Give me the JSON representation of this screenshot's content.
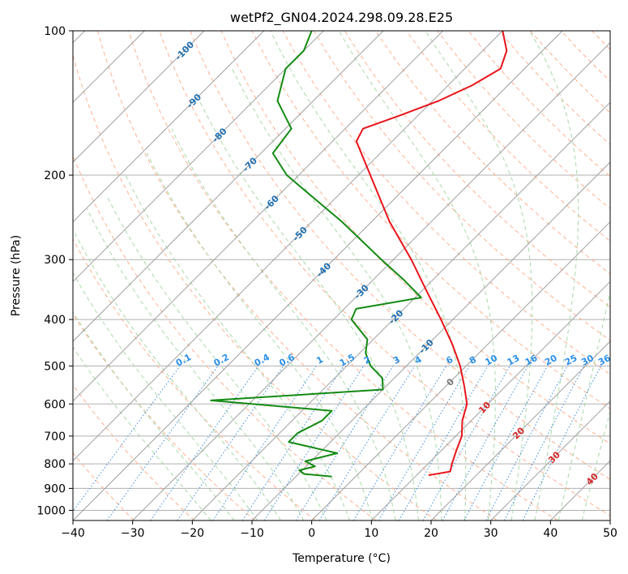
{
  "chart_data": {
    "type": "line",
    "diagram": "skew-t log-p",
    "title": "wetPf2_GN04.2024.298.09.28.E25",
    "xlabel": "Temperature (°C)",
    "ylabel": "Pressure (hPa)",
    "xlim": [
      -40,
      50
    ],
    "ylim": [
      1050,
      100
    ],
    "y_scale": "log",
    "grid": true,
    "x_ticks": [
      -40,
      -30,
      -20,
      -10,
      0,
      10,
      20,
      30,
      40,
      50
    ],
    "y_ticks": [
      100,
      200,
      300,
      400,
      500,
      600,
      700,
      800,
      900,
      1000
    ],
    "isotherm_labels": [
      "-100",
      "-90",
      "-80",
      "-70",
      "-60",
      "-50",
      "-40",
      "-30",
      "-20",
      "-10",
      "0",
      "10",
      "20",
      "30",
      "40"
    ],
    "mixing_ratio_labels": [
      "0.1",
      "0.2",
      "0.4",
      "0.6",
      "1",
      "1.5",
      "2",
      "3",
      "4",
      "6",
      "8",
      "10",
      "13",
      "16",
      "20",
      "25",
      "30",
      "36"
    ],
    "colors": {
      "temperature": "#e8141a",
      "dewpoint": "#138a13",
      "isotherm": "#a0a0a0",
      "dry_adiabat": "#ffb08f",
      "moist_adiabat": "#a8d8a8",
      "mixing_ratio": "#3a8ce0",
      "isotherm_label_cold": "#1f6fb0",
      "isotherm_label_warm": "#d62728",
      "isotherm_label_zero": "#777777",
      "mixing_label": "#2a8fe8",
      "grid": "#b0b0b0"
    },
    "series": [
      {
        "name": "temperature",
        "points": [
          {
            "p": 845,
            "t": 12.0
          },
          {
            "p": 830,
            "t": 15.0
          },
          {
            "p": 800,
            "t": 14.0
          },
          {
            "p": 750,
            "t": 12.5
          },
          {
            "p": 700,
            "t": 11.0
          },
          {
            "p": 650,
            "t": 8.5
          },
          {
            "p": 600,
            "t": 6.5
          },
          {
            "p": 550,
            "t": 3.0
          },
          {
            "p": 500,
            "t": -1.0
          },
          {
            "p": 450,
            "t": -6.0
          },
          {
            "p": 400,
            "t": -12.0
          },
          {
            "p": 350,
            "t": -19.0
          },
          {
            "p": 300,
            "t": -27.0
          },
          {
            "p": 250,
            "t": -37.0
          },
          {
            "p": 200,
            "t": -48.0
          },
          {
            "p": 170,
            "t": -56.0
          },
          {
            "p": 160,
            "t": -57.0
          },
          {
            "p": 150,
            "t": -53.0
          },
          {
            "p": 140,
            "t": -49.0
          },
          {
            "p": 130,
            "t": -46.0
          },
          {
            "p": 120,
            "t": -44.0
          },
          {
            "p": 110,
            "t": -46.0
          },
          {
            "p": 100,
            "t": -50.0
          }
        ]
      },
      {
        "name": "dewpoint",
        "points": [
          {
            "p": 850,
            "t": -4.0
          },
          {
            "p": 840,
            "t": -9.0
          },
          {
            "p": 825,
            "t": -10.5
          },
          {
            "p": 810,
            "t": -8.5
          },
          {
            "p": 790,
            "t": -11.0
          },
          {
            "p": 760,
            "t": -7.0
          },
          {
            "p": 720,
            "t": -17.0
          },
          {
            "p": 690,
            "t": -17.0
          },
          {
            "p": 650,
            "t": -15.0
          },
          {
            "p": 620,
            "t": -15.0
          },
          {
            "p": 590,
            "t": -37.0
          },
          {
            "p": 560,
            "t": -10.0
          },
          {
            "p": 530,
            "t": -12.0
          },
          {
            "p": 500,
            "t": -16.0
          },
          {
            "p": 470,
            "t": -19.0
          },
          {
            "p": 440,
            "t": -21.0
          },
          {
            "p": 400,
            "t": -27.0
          },
          {
            "p": 380,
            "t": -28.0
          },
          {
            "p": 360,
            "t": -19.0
          },
          {
            "p": 330,
            "t": -25.0
          },
          {
            "p": 300,
            "t": -32.0
          },
          {
            "p": 250,
            "t": -45.0
          },
          {
            "p": 200,
            "t": -62.0
          },
          {
            "p": 180,
            "t": -68.0
          },
          {
            "p": 160,
            "t": -69.0
          },
          {
            "p": 140,
            "t": -76.0
          },
          {
            "p": 120,
            "t": -80.0
          },
          {
            "p": 110,
            "t": -80.0
          },
          {
            "p": 100,
            "t": -82.0
          }
        ]
      }
    ]
  }
}
